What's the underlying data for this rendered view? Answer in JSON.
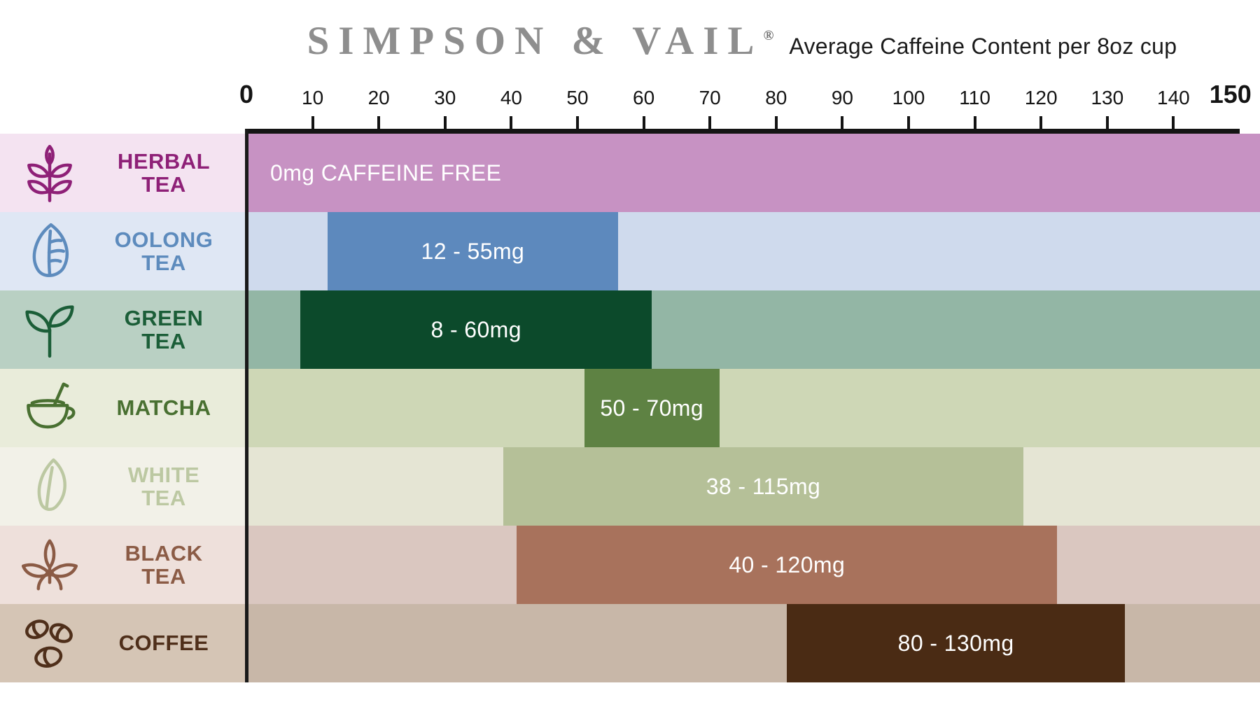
{
  "header": {
    "brand": "SIMPSON & VAIL",
    "registered": "®",
    "subtitle": "Average Caffeine Content per 8oz cup"
  },
  "chart_data": {
    "type": "bar",
    "orientation": "horizontal-range",
    "title": "Average Caffeine Content per 8oz cup",
    "xlim": [
      0,
      150
    ],
    "x_ticks": [
      0,
      10,
      20,
      30,
      40,
      50,
      60,
      70,
      80,
      90,
      100,
      110,
      120,
      130,
      140,
      150
    ],
    "grid": false,
    "legend": false,
    "categories": [
      "HERBAL TEA",
      "OOLONG TEA",
      "GREEN TEA",
      "MATCHA",
      "WHITE TEA",
      "BLACK TEA",
      "COFFEE"
    ],
    "series": [
      {
        "name": "HERBAL TEA",
        "label_line1": "HERBAL",
        "label_line2": "TEA",
        "caffeine_mg_min": 0,
        "caffeine_mg_max": 0,
        "value_label": "0mg CAFFEINE FREE",
        "display_range": [
          0,
          150
        ],
        "value_align": "left",
        "icon": "herbal-tea-icon",
        "colors": {
          "label_text": "#8e2077",
          "label_bg": "#f4e3f1",
          "track_bg": "#c792c3",
          "bar": "#c792c3",
          "value_text": "#ffffff"
        }
      },
      {
        "name": "OOLONG TEA",
        "label_line1": "OOLONG",
        "label_line2": "TEA",
        "caffeine_mg_min": 12,
        "caffeine_mg_max": 55,
        "value_label": "12 - 55mg",
        "display_range": [
          12,
          55
        ],
        "value_align": "center",
        "icon": "oolong-tea-icon",
        "colors": {
          "label_text": "#5d8bbd",
          "label_bg": "#dfe7f4",
          "track_bg": "#cfdaed",
          "bar": "#5d89bd",
          "value_text": "#ffffff"
        }
      },
      {
        "name": "GREEN TEA",
        "label_line1": "GREEN",
        "label_line2": "TEA",
        "caffeine_mg_min": 8,
        "caffeine_mg_max": 60,
        "value_label": "8 - 60mg",
        "display_range": [
          8,
          60
        ],
        "value_align": "center",
        "icon": "green-tea-icon",
        "colors": {
          "label_text": "#1b5e38",
          "label_bg": "#b9d0c3",
          "track_bg": "#93b6a5",
          "bar": "#0c4a2b",
          "value_text": "#ffffff"
        }
      },
      {
        "name": "MATCHA",
        "label_line1": "MATCHA",
        "caffeine_mg_min": 50,
        "caffeine_mg_max": 70,
        "value_label": "50 - 70mg",
        "display_range": [
          50,
          70
        ],
        "value_align": "center",
        "icon": "matcha-icon",
        "colors": {
          "label_text": "#497031",
          "label_bg": "#e9ecda",
          "track_bg": "#ced7b6",
          "bar": "#5e8243",
          "value_text": "#ffffff"
        }
      },
      {
        "name": "WHITE TEA",
        "label_line1": "WHITE",
        "label_line2": "TEA",
        "caffeine_mg_min": 38,
        "caffeine_mg_max": 115,
        "value_label": "38 - 115mg",
        "display_range": [
          38,
          115
        ],
        "value_align": "center",
        "icon": "white-tea-icon",
        "colors": {
          "label_text": "#bcc8a2",
          "label_bg": "#f2f1e8",
          "track_bg": "#e5e5d4",
          "bar": "#b5c098",
          "value_text": "#ffffff"
        }
      },
      {
        "name": "BLACK TEA",
        "label_line1": "BLACK",
        "label_line2": "TEA",
        "caffeine_mg_min": 40,
        "caffeine_mg_max": 120,
        "value_label": "40 - 120mg",
        "display_range": [
          40,
          120
        ],
        "value_align": "center",
        "icon": "black-tea-icon",
        "colors": {
          "label_text": "#8b5b45",
          "label_bg": "#eee0db",
          "track_bg": "#dac7c0",
          "bar": "#a8725c",
          "value_text": "#ffffff"
        }
      },
      {
        "name": "COFFEE",
        "label_line1": "COFFEE",
        "caffeine_mg_min": 80,
        "caffeine_mg_max": 130,
        "value_label": "80 - 130mg",
        "display_range": [
          80,
          130
        ],
        "value_align": "center",
        "icon": "coffee-icon",
        "colors": {
          "label_text": "#4f2f1a",
          "label_bg": "#d5c5b5",
          "track_bg": "#c8b7a8",
          "bar": "#4a2b14",
          "value_text": "#ffffff"
        }
      }
    ]
  }
}
